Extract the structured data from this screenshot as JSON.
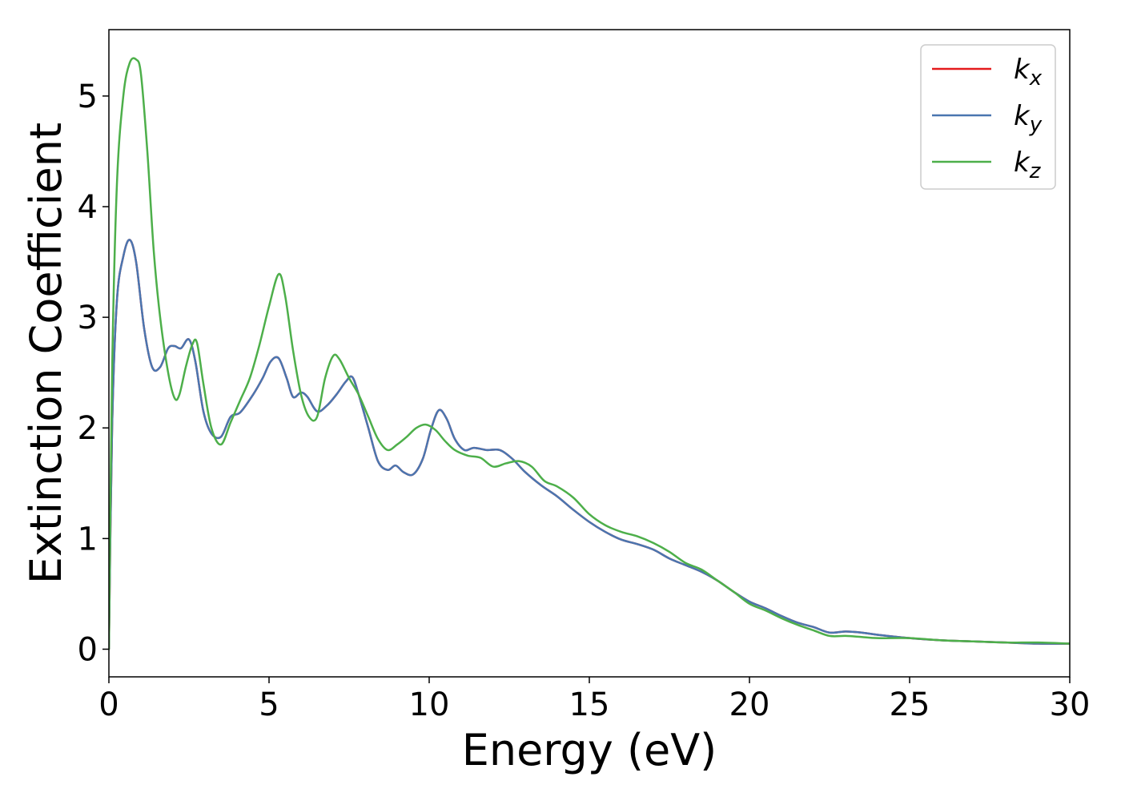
{
  "chart_data": {
    "type": "line",
    "title": "",
    "xlabel": "Energy (eV)",
    "ylabel": "Extinction Coefficient",
    "xlim": [
      0,
      30
    ],
    "ylim": [
      -0.25,
      5.6
    ],
    "xticks": [
      "0",
      "5",
      "10",
      "15",
      "20",
      "25",
      "30"
    ],
    "yticks": [
      "0",
      "1",
      "2",
      "3",
      "4",
      "5"
    ],
    "grid": false,
    "legend_position": "top-right",
    "series": [
      {
        "name": "k",
        "subscript": "x",
        "color": "#e41a1c",
        "x": [
          0,
          0.1,
          0.25,
          0.45,
          0.65,
          0.85,
          1.1,
          1.35,
          1.6,
          1.85,
          2.05,
          2.25,
          2.5,
          2.7,
          2.95,
          3.2,
          3.5,
          3.8,
          4.1,
          4.5,
          4.8,
          5.05,
          5.3,
          5.55,
          5.75,
          6.0,
          6.2,
          6.5,
          6.8,
          7.1,
          7.4,
          7.6,
          7.8,
          8.1,
          8.4,
          8.7,
          8.95,
          9.2,
          9.5,
          9.8,
          10.05,
          10.3,
          10.55,
          10.8,
          11.1,
          11.4,
          11.8,
          12.2,
          12.6,
          13.0,
          13.5,
          14.0,
          14.5,
          15.0,
          15.5,
          16.0,
          16.5,
          17.0,
          17.5,
          18.0,
          18.5,
          19.0,
          19.5,
          20.0,
          20.5,
          21.0,
          21.5,
          22.0,
          22.5,
          23.0,
          23.5,
          24.0,
          25.0,
          26.0,
          27.0,
          28.0,
          29.0,
          30.0
        ],
        "y": [
          0.0,
          2.0,
          3.15,
          3.55,
          3.7,
          3.5,
          2.9,
          2.55,
          2.55,
          2.72,
          2.74,
          2.72,
          2.8,
          2.6,
          2.15,
          1.95,
          1.92,
          2.1,
          2.14,
          2.3,
          2.45,
          2.6,
          2.63,
          2.45,
          2.28,
          2.32,
          2.28,
          2.15,
          2.2,
          2.3,
          2.42,
          2.46,
          2.3,
          2.0,
          1.7,
          1.62,
          1.66,
          1.6,
          1.58,
          1.72,
          1.98,
          2.16,
          2.08,
          1.9,
          1.8,
          1.82,
          1.8,
          1.8,
          1.72,
          1.6,
          1.48,
          1.38,
          1.26,
          1.15,
          1.06,
          0.99,
          0.95,
          0.9,
          0.82,
          0.76,
          0.7,
          0.62,
          0.52,
          0.43,
          0.37,
          0.3,
          0.24,
          0.2,
          0.15,
          0.16,
          0.15,
          0.13,
          0.1,
          0.08,
          0.07,
          0.06,
          0.05,
          0.05
        ]
      },
      {
        "name": "k",
        "subscript": "y",
        "color": "#4a76b0",
        "x": [
          0,
          0.1,
          0.25,
          0.45,
          0.65,
          0.85,
          1.1,
          1.35,
          1.6,
          1.85,
          2.05,
          2.25,
          2.5,
          2.7,
          2.95,
          3.2,
          3.5,
          3.8,
          4.1,
          4.5,
          4.8,
          5.05,
          5.3,
          5.55,
          5.75,
          6.0,
          6.2,
          6.5,
          6.8,
          7.1,
          7.4,
          7.6,
          7.8,
          8.1,
          8.4,
          8.7,
          8.95,
          9.2,
          9.5,
          9.8,
          10.05,
          10.3,
          10.55,
          10.8,
          11.1,
          11.4,
          11.8,
          12.2,
          12.6,
          13.0,
          13.5,
          14.0,
          14.5,
          15.0,
          15.5,
          16.0,
          16.5,
          17.0,
          17.5,
          18.0,
          18.5,
          19.0,
          19.5,
          20.0,
          20.5,
          21.0,
          21.5,
          22.0,
          22.5,
          23.0,
          23.5,
          24.0,
          25.0,
          26.0,
          27.0,
          28.0,
          29.0,
          30.0
        ],
        "y": [
          0.0,
          2.0,
          3.15,
          3.55,
          3.7,
          3.5,
          2.9,
          2.55,
          2.55,
          2.72,
          2.74,
          2.72,
          2.8,
          2.6,
          2.15,
          1.95,
          1.92,
          2.1,
          2.14,
          2.3,
          2.45,
          2.6,
          2.63,
          2.45,
          2.28,
          2.32,
          2.28,
          2.15,
          2.2,
          2.3,
          2.42,
          2.46,
          2.3,
          2.0,
          1.7,
          1.62,
          1.66,
          1.6,
          1.58,
          1.72,
          1.98,
          2.16,
          2.08,
          1.9,
          1.8,
          1.82,
          1.8,
          1.8,
          1.72,
          1.6,
          1.48,
          1.38,
          1.26,
          1.15,
          1.06,
          0.99,
          0.95,
          0.9,
          0.82,
          0.76,
          0.7,
          0.62,
          0.52,
          0.43,
          0.37,
          0.3,
          0.24,
          0.2,
          0.15,
          0.16,
          0.15,
          0.13,
          0.1,
          0.08,
          0.07,
          0.06,
          0.05,
          0.05
        ]
      },
      {
        "name": "k",
        "subscript": "z",
        "color": "#4daf4a",
        "x": [
          0,
          0.1,
          0.25,
          0.45,
          0.65,
          0.85,
          1.0,
          1.2,
          1.4,
          1.6,
          1.85,
          2.05,
          2.2,
          2.4,
          2.6,
          2.75,
          2.95,
          3.2,
          3.5,
          3.8,
          4.1,
          4.4,
          4.7,
          5.0,
          5.3,
          5.5,
          5.75,
          6.0,
          6.25,
          6.5,
          6.75,
          7.0,
          7.2,
          7.5,
          7.8,
          8.1,
          8.4,
          8.7,
          9.0,
          9.3,
          9.6,
          9.9,
          10.2,
          10.5,
          10.8,
          11.2,
          11.6,
          12.0,
          12.4,
          12.8,
          13.2,
          13.6,
          14.0,
          14.5,
          15.0,
          15.5,
          16.0,
          16.5,
          17.0,
          17.5,
          18.0,
          18.5,
          19.0,
          19.5,
          20.0,
          20.5,
          21.0,
          21.5,
          22.0,
          22.5,
          23.0,
          23.5,
          24.0,
          25.0,
          26.0,
          27.0,
          28.0,
          29.0,
          30.0
        ],
        "y": [
          0.0,
          2.5,
          4.2,
          5.0,
          5.3,
          5.33,
          5.2,
          4.5,
          3.6,
          3.0,
          2.5,
          2.27,
          2.3,
          2.55,
          2.75,
          2.77,
          2.4,
          2.0,
          1.85,
          2.05,
          2.25,
          2.45,
          2.75,
          3.1,
          3.39,
          3.2,
          2.7,
          2.3,
          2.1,
          2.1,
          2.45,
          2.65,
          2.62,
          2.45,
          2.3,
          2.1,
          1.9,
          1.8,
          1.85,
          1.92,
          2.0,
          2.03,
          1.98,
          1.88,
          1.8,
          1.75,
          1.73,
          1.65,
          1.68,
          1.7,
          1.65,
          1.52,
          1.47,
          1.37,
          1.22,
          1.12,
          1.06,
          1.02,
          0.96,
          0.88,
          0.78,
          0.72,
          0.62,
          0.52,
          0.41,
          0.35,
          0.28,
          0.22,
          0.17,
          0.12,
          0.12,
          0.11,
          0.1,
          0.1,
          0.08,
          0.07,
          0.06,
          0.06,
          0.05
        ]
      }
    ]
  }
}
